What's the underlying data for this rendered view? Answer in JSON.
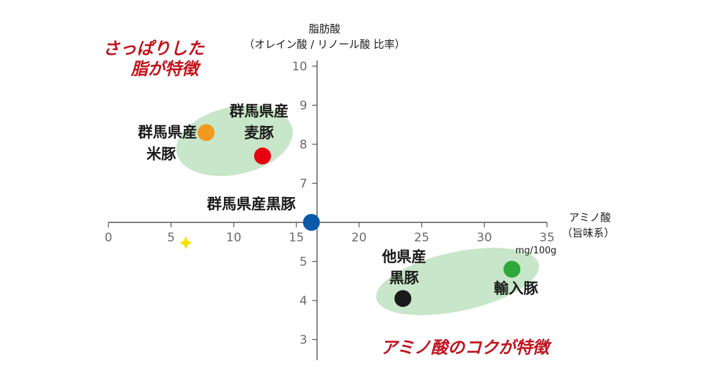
{
  "chart_data": {
    "type": "scatter",
    "x_axis": {
      "label": "アミノ酸",
      "sublabel": "（旨味系）",
      "range": [
        0,
        35
      ],
      "ticks": [
        0,
        5,
        10,
        15,
        20,
        25,
        30,
        35
      ],
      "unit": "mg/100g"
    },
    "y_axis": {
      "label": "脂肪酸",
      "sublabel": "（オレイン酸 / リノール酸 比率）",
      "range": [
        2.5,
        10
      ],
      "upper_ticks": [
        7,
        8,
        9,
        10
      ],
      "lower_ticks": [
        3,
        4,
        5
      ],
      "crosses_x_at": 16.2,
      "x_axis_at": 6.0
    },
    "points": [
      {
        "label_lines": [
          "群馬県産",
          "米豚"
        ],
        "x": 7.8,
        "y": 8.3,
        "color": "#f39a1e"
      },
      {
        "label_lines": [
          "群馬県産",
          "麦豚"
        ],
        "x": 12.3,
        "y": 7.7,
        "color": "#e60012"
      },
      {
        "label_lines": [
          "群馬県産黒豚"
        ],
        "x": 16.2,
        "y": 6.0,
        "color": "#0a5aaa"
      },
      {
        "label_lines": [
          "他県産",
          "黒豚"
        ],
        "x": 23.5,
        "y": 4.05,
        "color": "#1a1a1a"
      },
      {
        "label_lines": [
          "輸入豚"
        ],
        "x": 32.2,
        "y": 4.8,
        "color": "#2ea83a"
      }
    ],
    "groups": [
      {
        "members": [
          "米豚",
          "麦豚"
        ],
        "color": "#c8e6c9"
      },
      {
        "members": [
          "他県産黒豚",
          "輸入豚"
        ],
        "color": "#c8e6c9"
      }
    ],
    "annotations": [
      {
        "lines": [
          "さっぱりした",
          "脂が特徴"
        ],
        "color": "#c0141e"
      },
      {
        "lines": [
          "アミノ酸のコクが特徴"
        ],
        "color": "#c0141e"
      }
    ]
  }
}
